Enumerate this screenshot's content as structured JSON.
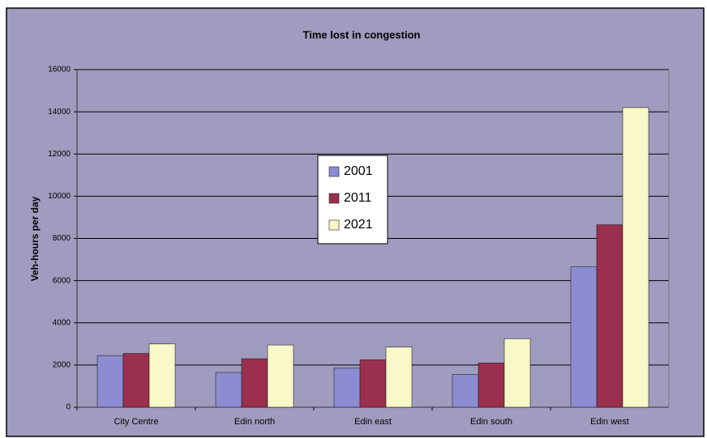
{
  "chart_data": {
    "type": "bar",
    "title": "Time lost in congestion",
    "y_label": "Veh-hours per day",
    "categories": [
      "City Centre",
      "Edin north",
      "Edin east",
      "Edin south",
      "Edin west"
    ],
    "series": [
      {
        "name": "2001",
        "color": "#8c8cd2",
        "values": [
          2450,
          1650,
          1850,
          1550,
          6650
        ]
      },
      {
        "name": "2011",
        "color": "#9a2f4e",
        "values": [
          2550,
          2300,
          2250,
          2100,
          8650
        ]
      },
      {
        "name": "2021",
        "color": "#f8f8c8",
        "values": [
          3000,
          2950,
          2850,
          3250,
          14200
        ]
      }
    ],
    "ylim": [
      0,
      16000
    ],
    "yticks": [
      0,
      2000,
      4000,
      6000,
      8000,
      10000,
      12000,
      14000,
      16000
    ],
    "grid": true,
    "legend_position": "center"
  }
}
